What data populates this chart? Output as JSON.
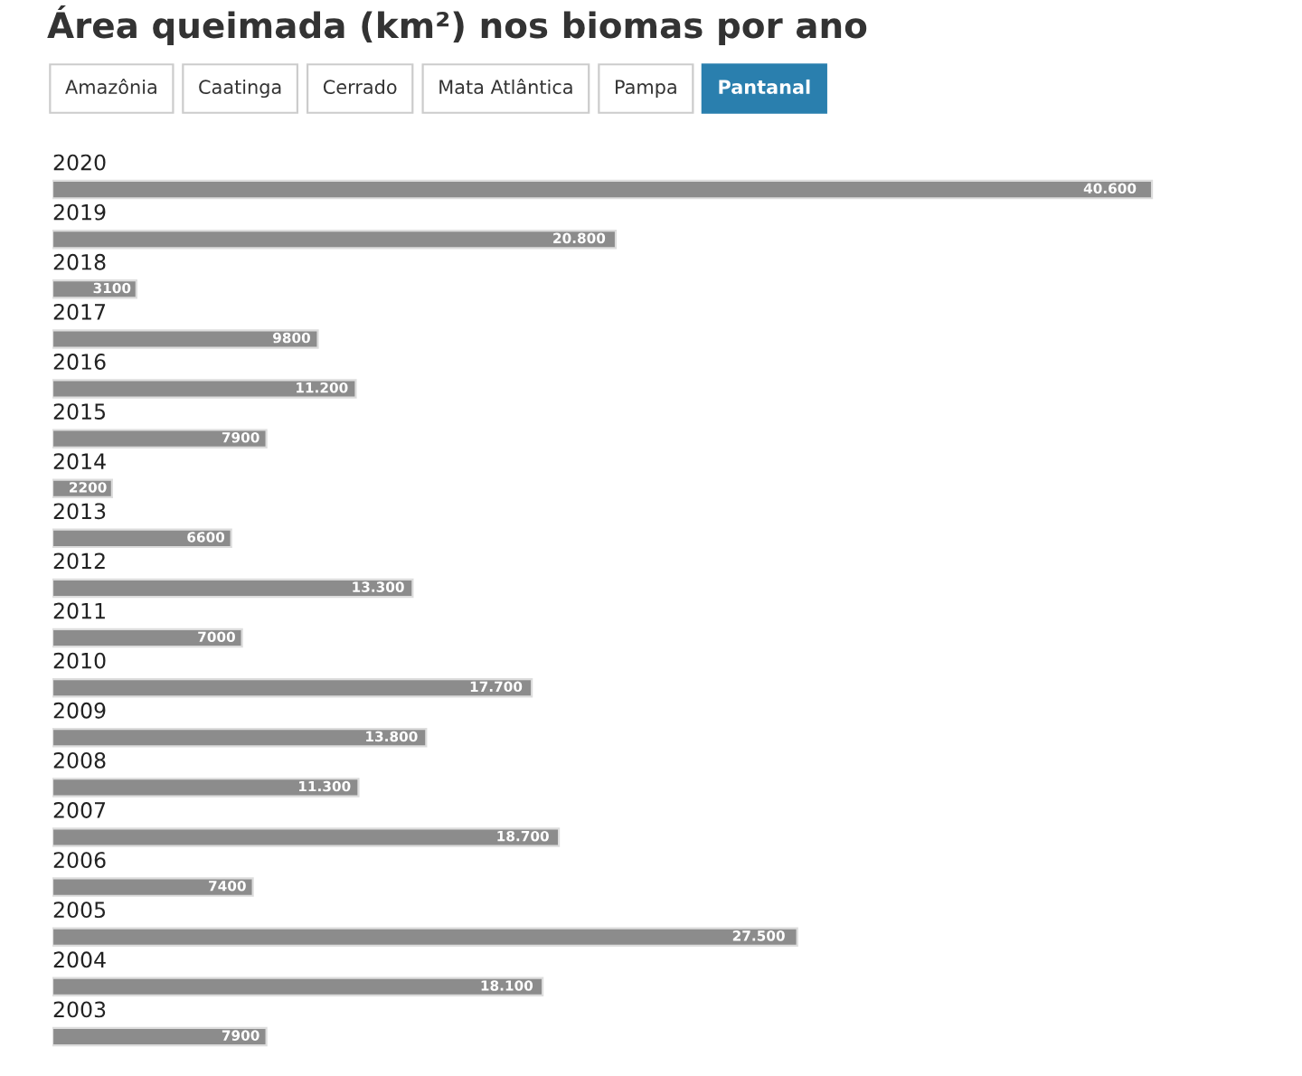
{
  "chart_data": {
    "type": "bar",
    "orientation": "horizontal",
    "title": "Área queimada (km²) nos biomas por ano",
    "annotations": [
      "Amazônia",
      "Caatinga",
      "Cerrado",
      "Mata Atlântica",
      "Pampa",
      "Pantanal"
    ],
    "categories": [
      "2020",
      "2019",
      "2018",
      "2017",
      "2016",
      "2015",
      "2014",
      "2013",
      "2012",
      "2011",
      "2010",
      "2009",
      "2008",
      "2007",
      "2006",
      "2005",
      "2004",
      "2003"
    ],
    "values": [
      40600,
      20800,
      3100,
      9800,
      11200,
      7900,
      2200,
      6600,
      13300,
      7000,
      17700,
      13800,
      11300,
      18700,
      7400,
      27500,
      18100,
      7900
    ],
    "value_labels": [
      "40.600",
      "20.800",
      "3100",
      "9800",
      "11.200",
      "7900",
      "2200",
      "6600",
      "13.300",
      "7000",
      "17.700",
      "13.800",
      "11.300",
      "18.700",
      "7400",
      "27.500",
      "18.100",
      "7900"
    ],
    "color": "#8c8c8c",
    "legend": false
  }
}
